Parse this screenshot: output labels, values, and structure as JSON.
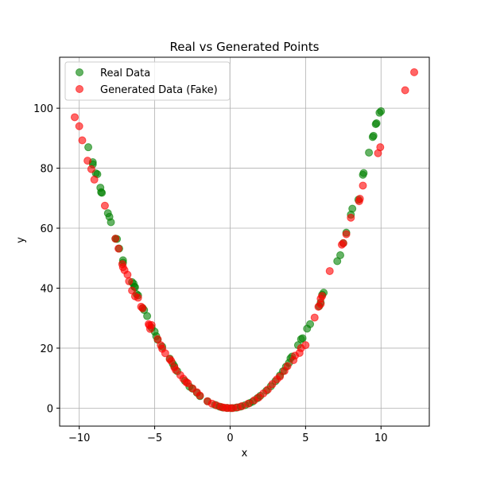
{
  "chart_data": {
    "type": "scatter",
    "title": "Real vs Generated Points",
    "xlabel": "x",
    "ylabel": "y",
    "xlim": [
      -11.3,
      13.2
    ],
    "ylim": [
      -6,
      117
    ],
    "x_ticks": [
      -10,
      -5,
      0,
      5,
      10
    ],
    "y_ticks": [
      0,
      20,
      40,
      60,
      80,
      100
    ],
    "grid": true,
    "legend_position": "top-left",
    "series": [
      {
        "name": "Real Data",
        "color": "#008000",
        "points": [
          [
            -9.4,
            87
          ],
          [
            -9.1,
            82
          ],
          [
            -9.1,
            81.3
          ],
          [
            -8.9,
            78.3
          ],
          [
            -8.8,
            78
          ],
          [
            -8.6,
            73.5
          ],
          [
            -8.55,
            72
          ],
          [
            -8.5,
            71.8
          ],
          [
            -8.1,
            65
          ],
          [
            -8.0,
            63.8
          ],
          [
            -7.9,
            62
          ],
          [
            -7.6,
            56.5
          ],
          [
            -7.5,
            56.4
          ],
          [
            -7.35,
            53.2
          ],
          [
            -7.1,
            49.3
          ],
          [
            -7.1,
            48.5
          ],
          [
            -6.5,
            42
          ],
          [
            -6.4,
            41.5
          ],
          [
            -6.35,
            40.5
          ],
          [
            -6.3,
            40.3
          ],
          [
            -6.2,
            38
          ],
          [
            -6.1,
            37.6
          ],
          [
            -5.8,
            33.4
          ],
          [
            -5.7,
            32.7
          ],
          [
            -5.5,
            30.7
          ],
          [
            -5.2,
            26.8
          ],
          [
            -5.0,
            25.5
          ],
          [
            -4.9,
            24
          ],
          [
            -4.8,
            22.8
          ],
          [
            -4.5,
            20.5
          ],
          [
            -4.0,
            16.5
          ],
          [
            -3.8,
            14.8
          ],
          [
            -3.7,
            14
          ],
          [
            -3.5,
            12.3
          ],
          [
            -3.0,
            9.1
          ],
          [
            -2.7,
            7.2
          ],
          [
            -2.5,
            6.5
          ],
          [
            -2.2,
            5.1
          ],
          [
            -2.0,
            4
          ],
          [
            -1.5,
            2.3
          ],
          [
            -1.0,
            1.1
          ],
          [
            -0.7,
            0.5
          ],
          [
            -0.5,
            0.2
          ],
          [
            -0.2,
            0.05
          ],
          [
            0.1,
            0
          ],
          [
            0.4,
            0.15
          ],
          [
            0.7,
            0.5
          ],
          [
            1.0,
            1
          ],
          [
            1.3,
            1.7
          ],
          [
            1.5,
            2.2
          ],
          [
            1.8,
            3.3
          ],
          [
            2.0,
            4.1
          ],
          [
            2.4,
            5.8
          ],
          [
            2.7,
            7.3
          ],
          [
            3.0,
            9
          ],
          [
            3.3,
            10.9
          ],
          [
            3.5,
            12.3
          ],
          [
            3.7,
            13.8
          ],
          [
            3.9,
            15.1
          ],
          [
            4.0,
            16.6
          ],
          [
            4.1,
            17.2
          ],
          [
            4.5,
            21
          ],
          [
            4.7,
            23
          ],
          [
            4.8,
            23.3
          ],
          [
            5.1,
            26.5
          ],
          [
            5.3,
            28
          ],
          [
            5.9,
            34
          ],
          [
            6.0,
            35.2
          ],
          [
            6.2,
            38.5
          ],
          [
            6.1,
            37.8
          ],
          [
            7.1,
            49
          ],
          [
            7.3,
            51
          ],
          [
            7.5,
            55
          ],
          [
            7.7,
            58.5
          ],
          [
            8.0,
            64.5
          ],
          [
            8.1,
            66.5
          ],
          [
            8.5,
            69.5
          ],
          [
            8.8,
            77.8
          ],
          [
            8.85,
            78.4
          ],
          [
            9.2,
            85.2
          ],
          [
            9.45,
            90.4
          ],
          [
            9.5,
            90.8
          ],
          [
            9.65,
            94.7
          ],
          [
            9.7,
            95
          ],
          [
            9.9,
            98.5
          ],
          [
            10.0,
            99
          ]
        ]
      },
      {
        "name": "Generated Data (Fake)",
        "color": "#ff0000",
        "points": [
          [
            -10.3,
            97
          ],
          [
            -10.0,
            94
          ],
          [
            -9.8,
            89.3
          ],
          [
            -9.45,
            82.5
          ],
          [
            -9.2,
            79.7
          ],
          [
            -9.0,
            76.2
          ],
          [
            -8.3,
            67.5
          ],
          [
            -7.6,
            56.5
          ],
          [
            -7.4,
            53.2
          ],
          [
            -7.15,
            48
          ],
          [
            -7.1,
            47
          ],
          [
            -7.0,
            46
          ],
          [
            -6.8,
            44.5
          ],
          [
            -6.7,
            42.3
          ],
          [
            -6.5,
            39.2
          ],
          [
            -6.3,
            37.3
          ],
          [
            -6.1,
            36.8
          ],
          [
            -5.9,
            33.8
          ],
          [
            -5.8,
            33.3
          ],
          [
            -5.4,
            28
          ],
          [
            -5.35,
            27.6
          ],
          [
            -5.3,
            26.4
          ],
          [
            -5.2,
            27.7
          ],
          [
            -4.8,
            23
          ],
          [
            -4.6,
            21
          ],
          [
            -4.5,
            19.8
          ],
          [
            -4.3,
            18.3
          ],
          [
            -4.0,
            16.3
          ],
          [
            -3.9,
            15.7
          ],
          [
            -3.7,
            13.6
          ],
          [
            -3.6,
            12.7
          ],
          [
            -3.3,
            11
          ],
          [
            -3.1,
            9.8
          ],
          [
            -2.9,
            8.6
          ],
          [
            -2.8,
            8.3
          ],
          [
            -2.5,
            6.6
          ],
          [
            -2.2,
            5.3
          ],
          [
            -2.0,
            4.2
          ],
          [
            -1.5,
            2.3
          ],
          [
            -1.2,
            1.5
          ],
          [
            -0.9,
            0.9
          ],
          [
            -0.6,
            0.4
          ],
          [
            -0.4,
            0.16
          ],
          [
            -0.2,
            0.05
          ],
          [
            0.0,
            0
          ],
          [
            0.2,
            0.04
          ],
          [
            0.5,
            0.25
          ],
          [
            0.8,
            0.7
          ],
          [
            1.2,
            1.5
          ],
          [
            1.6,
            2.6
          ],
          [
            1.9,
            3.6
          ],
          [
            2.2,
            4.9
          ],
          [
            2.5,
            6.2
          ],
          [
            2.8,
            8
          ],
          [
            3.1,
            9.6
          ],
          [
            3.3,
            10.5
          ],
          [
            3.6,
            12.4
          ],
          [
            3.8,
            14
          ],
          [
            4.2,
            16
          ],
          [
            4.3,
            17.5
          ],
          [
            4.6,
            18.4
          ],
          [
            4.7,
            20
          ],
          [
            5.0,
            21
          ],
          [
            5.6,
            30.2
          ],
          [
            5.85,
            33.8
          ],
          [
            6.0,
            34.7
          ],
          [
            6.0,
            36.5
          ],
          [
            6.1,
            37.4
          ],
          [
            6.6,
            45.7
          ],
          [
            7.4,
            54.5
          ],
          [
            7.5,
            55
          ],
          [
            7.7,
            58
          ],
          [
            8.0,
            63.5
          ],
          [
            8.55,
            69
          ],
          [
            8.6,
            69.8
          ],
          [
            8.8,
            74.2
          ],
          [
            9.8,
            85
          ],
          [
            9.95,
            87
          ],
          [
            11.6,
            106
          ],
          [
            12.2,
            112
          ]
        ]
      }
    ]
  }
}
